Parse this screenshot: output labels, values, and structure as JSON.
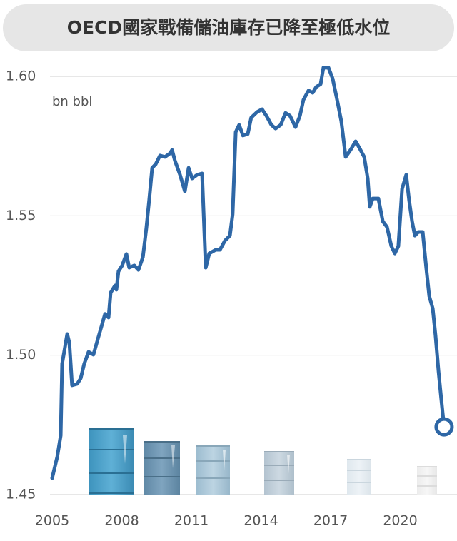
{
  "chart_data": {
    "type": "line",
    "title": "OECD國家戰備儲油庫存已降至極低水位",
    "unit_label": "bn bbl",
    "color": "#2e67a6",
    "grid": true,
    "xlim": [
      2005,
      2022
    ],
    "xticks": [
      2005,
      2008,
      2011,
      2014,
      2017,
      2020
    ],
    "ylim": [
      1.45,
      1.6
    ],
    "yticks": [
      1.45,
      {
        "value": 1.5,
        "label": "1.50"
      },
      1.55,
      {
        "value": 1.6,
        "label": "1.60"
      }
    ],
    "x": [
      2005.0,
      2005.22,
      2005.37,
      2005.43,
      2005.65,
      2005.74,
      2005.86,
      2006.08,
      2006.23,
      2006.38,
      2006.57,
      2006.78,
      2006.97,
      2007.28,
      2007.43,
      2007.52,
      2007.71,
      2007.77,
      2007.86,
      2008.02,
      2008.2,
      2008.32,
      2008.54,
      2008.72,
      2008.91,
      2009.06,
      2009.18,
      2009.31,
      2009.46,
      2009.65,
      2009.86,
      2010.08,
      2010.17,
      2010.29,
      2010.51,
      2010.72,
      2010.88,
      2011.03,
      2011.25,
      2011.46,
      2011.62,
      2011.77,
      2012.05,
      2012.23,
      2012.45,
      2012.66,
      2012.78,
      2012.91,
      2013.06,
      2013.22,
      2013.43,
      2013.58,
      2013.83,
      2014.05,
      2014.23,
      2014.45,
      2014.63,
      2014.85,
      2015.06,
      2015.25,
      2015.49,
      2015.68,
      2015.83,
      2016.05,
      2016.23,
      2016.38,
      2016.57,
      2016.69,
      2016.91,
      2017.09,
      2017.28,
      2017.46,
      2017.65,
      2017.86,
      2018.08,
      2018.26,
      2018.45,
      2018.6,
      2018.69,
      2018.82,
      2019.06,
      2019.25,
      2019.43,
      2019.62,
      2019.77,
      2019.92,
      2020.08,
      2020.26,
      2020.38,
      2020.51,
      2020.63,
      2020.78,
      2020.97,
      2021.12,
      2021.25,
      2021.4,
      2021.52,
      2021.65,
      2021.77,
      2021.89
    ],
    "series": [
      {
        "name": "OECD",
        "color": "#2e67a6",
        "values": [
          1.4559,
          1.4636,
          1.4712,
          1.4969,
          1.5076,
          1.5045,
          1.4892,
          1.4897,
          1.4917,
          1.4969,
          1.5012,
          1.5002,
          1.5058,
          1.5148,
          1.5135,
          1.5224,
          1.525,
          1.5235,
          1.5301,
          1.5322,
          1.5363,
          1.5314,
          1.5322,
          1.5306,
          1.5352,
          1.5455,
          1.5557,
          1.5672,
          1.5685,
          1.5716,
          1.5711,
          1.5724,
          1.5736,
          1.5698,
          1.5647,
          1.5588,
          1.5672,
          1.5634,
          1.5647,
          1.5652,
          1.5314,
          1.5365,
          1.5378,
          1.5378,
          1.5411,
          1.5429,
          1.5506,
          1.58,
          1.5826,
          1.5788,
          1.5793,
          1.5852,
          1.5872,
          1.5882,
          1.5859,
          1.5826,
          1.5813,
          1.5826,
          1.5869,
          1.5859,
          1.5818,
          1.5859,
          1.5916,
          1.5949,
          1.5941,
          1.5962,
          1.5972,
          1.6031,
          1.6031,
          1.5992,
          1.5916,
          1.5839,
          1.5711,
          1.5736,
          1.5767,
          1.5741,
          1.5711,
          1.5634,
          1.5532,
          1.5562,
          1.5562,
          1.548,
          1.546,
          1.5391,
          1.5365,
          1.5391,
          1.5596,
          1.5647,
          1.5557,
          1.548,
          1.5429,
          1.5442,
          1.5442,
          1.5314,
          1.5212,
          1.5168,
          1.5071,
          1.4943,
          1.4841,
          1.4743
        ]
      }
    ]
  }
}
